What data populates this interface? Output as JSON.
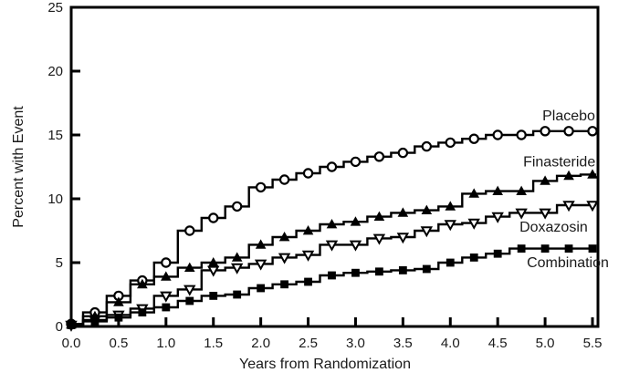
{
  "colors": {
    "background": "#ffffff",
    "line": "#000000",
    "text": "#1a1a1a"
  },
  "chart_data": {
    "type": "line",
    "subtype": "kaplan-meier-step",
    "title": "",
    "xlabel": "Years from Randomization",
    "ylabel": "Percent with Event",
    "xlim": [
      0,
      5.5
    ],
    "ylim": [
      0,
      25
    ],
    "grid": false,
    "legend_position": "inline-labels-right",
    "xticks": [
      0,
      0.5,
      1,
      1.5,
      2,
      2.5,
      3,
      3.5,
      4,
      4.5,
      5,
      5.5
    ],
    "xtick_labels": [
      "0.0",
      "0.5",
      "1.0",
      "1.5",
      "2.0",
      "2.5",
      "3.0",
      "3.5",
      "4.0",
      "4.5",
      "5.0",
      "5.5"
    ],
    "yticks": [
      0,
      5,
      10,
      15,
      20,
      25
    ],
    "ytick_labels": [
      "0",
      "5",
      "10",
      "15",
      "20",
      "25"
    ],
    "x": [
      0,
      0.25,
      0.5,
      0.75,
      1.0,
      1.25,
      1.5,
      1.75,
      2.0,
      2.25,
      2.5,
      2.75,
      3.0,
      3.25,
      3.5,
      3.75,
      4.0,
      4.25,
      4.5,
      4.75,
      5.0,
      5.25,
      5.5
    ],
    "series": [
      {
        "name": "Placebo",
        "marker": "open-circle",
        "values": [
          0.2,
          1.1,
          2.4,
          3.6,
          5.0,
          7.5,
          8.5,
          9.4,
          10.9,
          11.5,
          12.0,
          12.5,
          12.9,
          13.3,
          13.6,
          14.1,
          14.4,
          14.7,
          15.0,
          15.0,
          15.3,
          15.3,
          15.3
        ],
        "label": {
          "text": "Placebo",
          "x": 5.25,
          "y": 16.5
        }
      },
      {
        "name": "Finasteride",
        "marker": "filled-triangle-up",
        "values": [
          0.15,
          0.8,
          1.9,
          3.3,
          3.9,
          4.6,
          5.0,
          5.4,
          6.4,
          7.0,
          7.5,
          8.0,
          8.2,
          8.6,
          8.9,
          9.1,
          9.4,
          10.4,
          10.6,
          10.6,
          11.4,
          11.8,
          11.9
        ],
        "label": {
          "text": "Finasteride",
          "x": 5.15,
          "y": 12.9
        }
      },
      {
        "name": "Doxazosin",
        "marker": "open-triangle-down",
        "values": [
          0.1,
          0.5,
          0.9,
          1.4,
          2.4,
          2.9,
          4.4,
          4.6,
          4.9,
          5.4,
          5.6,
          6.4,
          6.4,
          6.9,
          7.0,
          7.5,
          8.0,
          8.1,
          8.6,
          8.9,
          8.9,
          9.5,
          9.5
        ],
        "label": {
          "text": "Doxazosin",
          "x": 5.09,
          "y": 7.8
        }
      },
      {
        "name": "Combination",
        "marker": "filled-square",
        "values": [
          0.1,
          0.4,
          0.7,
          1.1,
          1.5,
          2.0,
          2.4,
          2.5,
          3.0,
          3.3,
          3.5,
          4.0,
          4.2,
          4.3,
          4.4,
          4.5,
          5.0,
          5.4,
          5.7,
          6.1,
          6.1,
          6.1,
          6.1
        ],
        "label": {
          "text": "Combination",
          "x": 5.24,
          "y": 5.0
        }
      }
    ]
  }
}
